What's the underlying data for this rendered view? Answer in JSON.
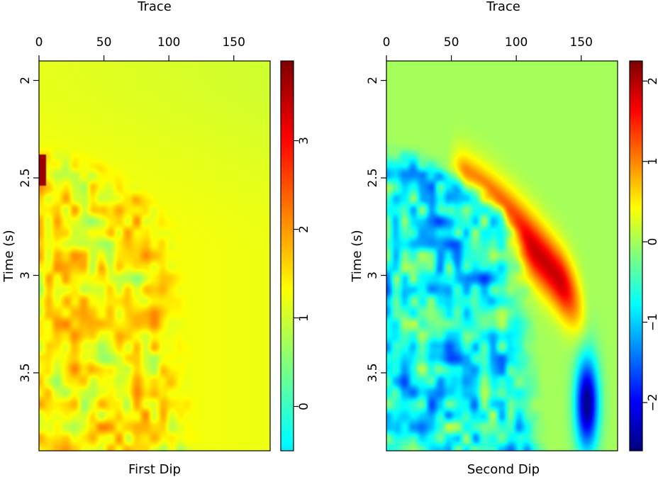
{
  "chart_data": [
    {
      "type": "heatmap",
      "title": "",
      "xlabel": "Trace",
      "ylabel": "Time (s)",
      "caption": "First Dip",
      "xlim": [
        0,
        178
      ],
      "ylim": [
        1.9,
        3.9
      ],
      "x_ticks": [
        0,
        50,
        100,
        150
      ],
      "y_ticks": [
        2,
        2.5,
        3,
        3.5
      ],
      "colorbar": {
        "range": [
          -0.5,
          3.9
        ],
        "ticks": [
          0,
          1,
          2,
          3
        ],
        "colormap": "jet-like (cyan-green to dark red)"
      },
      "field": {
        "background_value": 1.0,
        "wavefront_value": 2.8,
        "noise_zone_value": 1.9,
        "peak_value": 3.9
      }
    },
    {
      "type": "heatmap",
      "title": "",
      "xlabel": "Trace",
      "ylabel": "Time (s)",
      "caption": "Second Dip",
      "xlim": [
        0,
        178
      ],
      "ylim": [
        1.9,
        3.9
      ],
      "x_ticks": [
        0,
        50,
        100,
        150
      ],
      "y_ticks": [
        2,
        2.5,
        3,
        3.5
      ],
      "colorbar": {
        "range": [
          -2.6,
          2.25
        ],
        "ticks": [
          -2,
          -1,
          0,
          1,
          2
        ],
        "colormap": "jet (dark blue to dark red)"
      },
      "field": {
        "background_value": 0.0,
        "wavefront_value": 1.8,
        "noise_zone_value": -0.9,
        "min_value": -2.5
      }
    }
  ]
}
